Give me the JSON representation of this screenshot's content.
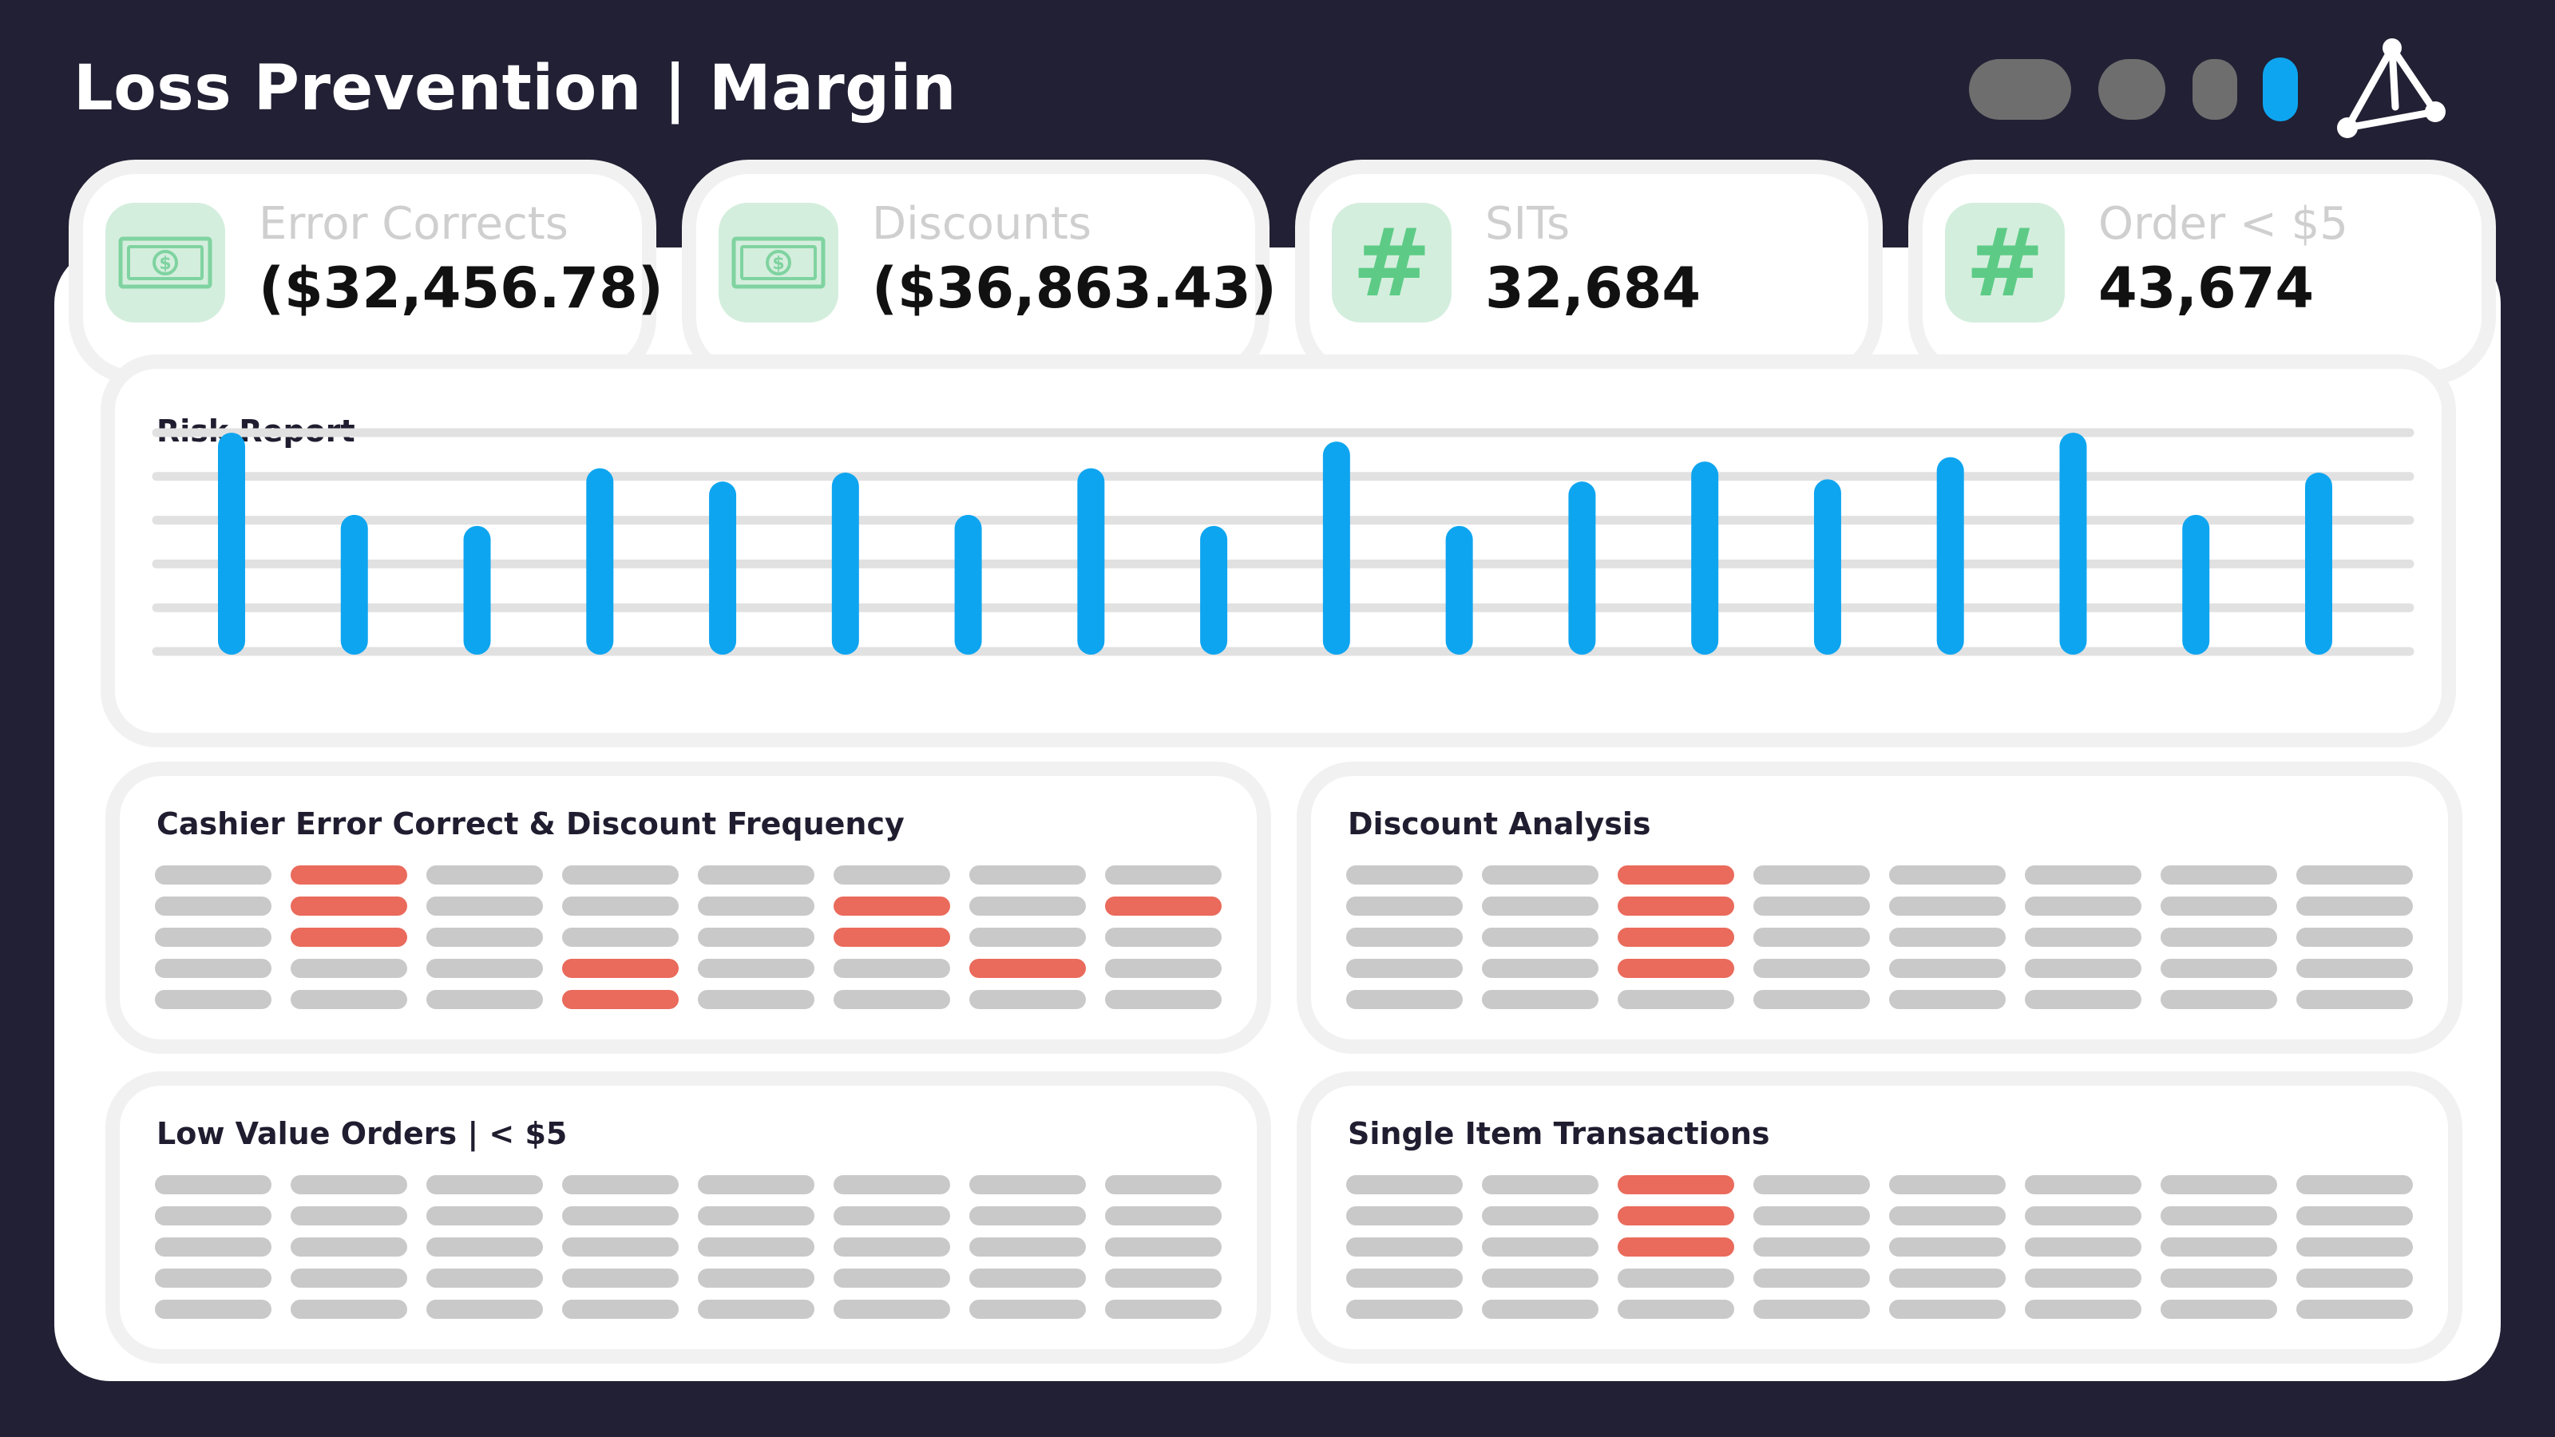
{
  "header": {
    "title": "Loss Prevention | Margin"
  },
  "kpis": [
    {
      "icon": "money-bill-icon",
      "label": "Error Corrects",
      "value": "($32,456.78)"
    },
    {
      "icon": "money-bill-icon",
      "label": "Discounts",
      "value": "($36,863.43)"
    },
    {
      "icon": "hash-icon",
      "label": "SITs",
      "value": "32,684"
    },
    {
      "icon": "hash-icon",
      "label": "Order < $5",
      "value": "43,674"
    }
  ],
  "risk_report": {
    "title": "Risk Report",
    "chart_data": {
      "type": "bar",
      "gridlines": 6,
      "grid": true,
      "ylim": [
        0,
        100
      ],
      "values": [
        100,
        63,
        58,
        84,
        78,
        82,
        63,
        84,
        58,
        96,
        58,
        78,
        87,
        79,
        89,
        100,
        63,
        82
      ]
    }
  },
  "tables": [
    {
      "key": "cashier",
      "title": "Cashier Error Correct & Discount Frequency",
      "rows": 5,
      "cols": 8,
      "highlighted": [
        [
          0,
          1
        ],
        [
          1,
          1
        ],
        [
          2,
          1
        ],
        [
          1,
          5
        ],
        [
          2,
          5
        ],
        [
          1,
          7
        ],
        [
          3,
          3
        ],
        [
          4,
          3
        ],
        [
          3,
          6
        ]
      ]
    },
    {
      "key": "discount",
      "title": "Discount Analysis",
      "rows": 5,
      "cols": 8,
      "highlighted": [
        [
          0,
          2
        ],
        [
          1,
          2
        ],
        [
          2,
          2
        ],
        [
          3,
          2
        ]
      ]
    },
    {
      "key": "lowvalue",
      "title": "Low Value Orders | < $5",
      "rows": 5,
      "cols": 8,
      "highlighted": []
    },
    {
      "key": "single",
      "title": "Single Item Transactions",
      "rows": 5,
      "cols": 8,
      "highlighted": [
        [
          0,
          2
        ],
        [
          1,
          2
        ],
        [
          2,
          2
        ]
      ]
    }
  ],
  "colors": {
    "background": "#222034",
    "accent_blue": "#0ea5f0",
    "highlight_red": "#ea6a5b",
    "placeholder_gray": "#c9c9c9",
    "icon_green": "#5dcb86",
    "icon_bg": "#d4eedd"
  }
}
